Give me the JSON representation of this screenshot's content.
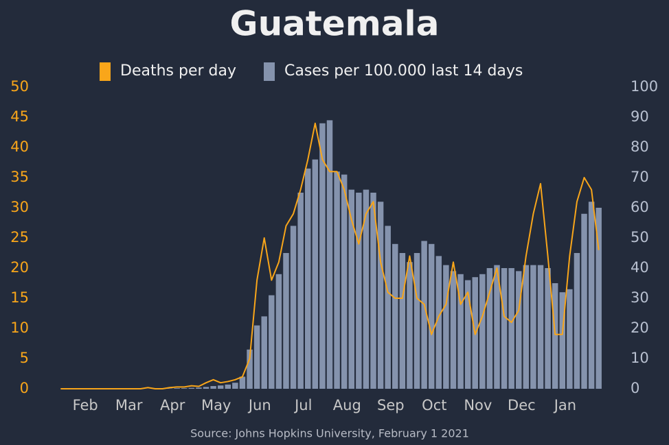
{
  "chart_data": {
    "type": "combo",
    "title": "Guatemala",
    "source": "Source: Johns Hopkins University, February 1 2021",
    "categories": [
      null,
      null,
      "Feb",
      null,
      null,
      null,
      null,
      null,
      "Mar",
      null,
      null,
      null,
      null,
      null,
      "Apr",
      null,
      null,
      null,
      null,
      null,
      "May",
      null,
      null,
      null,
      null,
      null,
      "Jun",
      null,
      null,
      null,
      null,
      null,
      "Jul",
      null,
      null,
      null,
      null,
      null,
      "Aug",
      null,
      null,
      null,
      null,
      null,
      "Sep",
      null,
      null,
      null,
      null,
      null,
      "Oct",
      null,
      null,
      null,
      null,
      null,
      "Nov",
      null,
      null,
      null,
      null,
      null,
      "Dec",
      null,
      null,
      null,
      null,
      null,
      "Jan",
      null,
      null,
      null,
      null,
      null,
      null
    ],
    "series": [
      {
        "name": "Deaths per day",
        "type": "line",
        "axis": "y",
        "color": "#f9a61a",
        "values": [
          0,
          0,
          0,
          0,
          0,
          0,
          0,
          0,
          0,
          0,
          0,
          0,
          0.2,
          0,
          0,
          0.2,
          0.3,
          0.3,
          0.5,
          0.4,
          1,
          1.5,
          1,
          1.2,
          1.5,
          2,
          5,
          18,
          25,
          18,
          21,
          27,
          29,
          33,
          38,
          44,
          38,
          36,
          36,
          33,
          28,
          24,
          29,
          31,
          21,
          16,
          15,
          15,
          22,
          15,
          14,
          9,
          12,
          14,
          21,
          14,
          16,
          9,
          12,
          16,
          20,
          12,
          11,
          13,
          22,
          29,
          34,
          22,
          9,
          9,
          22,
          31,
          35,
          33,
          23
        ]
      },
      {
        "name": "Cases per 100.000 last 14 days",
        "type": "bar",
        "axis": "y2",
        "color": "#8593ad",
        "values": [
          0,
          0,
          0,
          0,
          0,
          0,
          0,
          0,
          0,
          0,
          0,
          0,
          0,
          0.1,
          0.1,
          0.1,
          0.2,
          0.2,
          0.3,
          0.4,
          0.6,
          0.9,
          1.1,
          1.4,
          2,
          4,
          13,
          21,
          24,
          31,
          38,
          45,
          54,
          65,
          73,
          76,
          88,
          89,
          72,
          71,
          66,
          65,
          66,
          65,
          62,
          54,
          48,
          45,
          42,
          45,
          49,
          48,
          44,
          41,
          39,
          38,
          36,
          37,
          38,
          40,
          41,
          40,
          40,
          39,
          41,
          41,
          41,
          40,
          35,
          32,
          33,
          45,
          58,
          62,
          60
        ]
      }
    ],
    "ylim": [
      0,
      50
    ],
    "yticks": [
      0,
      5,
      10,
      15,
      20,
      25,
      30,
      35,
      40,
      45,
      50
    ],
    "y2lim": [
      0,
      100
    ],
    "y2ticks": [
      0,
      10,
      20,
      30,
      40,
      50,
      60,
      70,
      80,
      90,
      100
    ],
    "grid": false
  }
}
